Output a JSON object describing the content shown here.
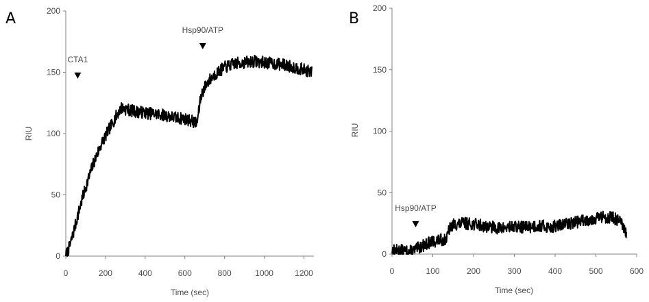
{
  "chart_data": [
    {
      "type": "line",
      "panel_label": "A",
      "title": "",
      "xlabel": "Time (sec)",
      "ylabel": "RIU",
      "xlim": [
        0,
        1250
      ],
      "ylim": [
        0,
        200
      ],
      "xticks": [
        0,
        200,
        400,
        600,
        800,
        1000,
        1200
      ],
      "yticks": [
        0,
        50,
        100,
        150,
        200
      ],
      "grid": false,
      "line_color": "#000000",
      "noise_amplitude": 5,
      "series": [
        {
          "x": [
            0,
            20,
            40,
            60,
            80,
            100,
            120,
            140,
            160,
            180,
            200,
            220,
            240,
            260,
            280,
            300,
            350,
            400,
            450,
            500,
            550,
            600,
            640,
            660,
            670,
            680,
            700,
            720,
            750,
            800,
            850,
            900,
            950,
            1000,
            1050,
            1100,
            1150,
            1200,
            1240
          ],
          "y": [
            0,
            8,
            20,
            33,
            45,
            56,
            66,
            76,
            84,
            92,
            98,
            104,
            110,
            116,
            121,
            120,
            118,
            117,
            116,
            115,
            113,
            112,
            110,
            108,
            118,
            130,
            138,
            143,
            148,
            154,
            157,
            158,
            159,
            158,
            157,
            156,
            154,
            152,
            150
          ]
        }
      ],
      "annotations": [
        {
          "text": "CTA1",
          "x": 60,
          "y": 147
        },
        {
          "text": "Hsp90/ATP",
          "x": 690,
          "y": 171
        }
      ]
    },
    {
      "type": "line",
      "panel_label": "B",
      "title": "",
      "xlabel": "Time (sec)",
      "ylabel": "RIU",
      "xlim": [
        0,
        600
      ],
      "ylim": [
        0,
        200
      ],
      "xticks": [
        0,
        100,
        200,
        300,
        400,
        500,
        600
      ],
      "yticks": [
        0,
        50,
        100,
        150,
        200
      ],
      "grid": false,
      "line_color": "#000000",
      "noise_amplitude": 5,
      "series": [
        {
          "x": [
            0,
            20,
            40,
            55,
            70,
            90,
            110,
            130,
            135,
            140,
            150,
            180,
            210,
            240,
            270,
            300,
            330,
            360,
            390,
            420,
            450,
            480,
            510,
            540,
            560,
            575
          ],
          "y": [
            3,
            3,
            2,
            3,
            6,
            9,
            11,
            12,
            13,
            20,
            24,
            25,
            24,
            22,
            21,
            22,
            22,
            23,
            22,
            24,
            26,
            28,
            30,
            30,
            26,
            16
          ]
        }
      ],
      "annotations": [
        {
          "text": "Hsp90/ATP",
          "x": 58,
          "y": 24
        }
      ]
    }
  ]
}
